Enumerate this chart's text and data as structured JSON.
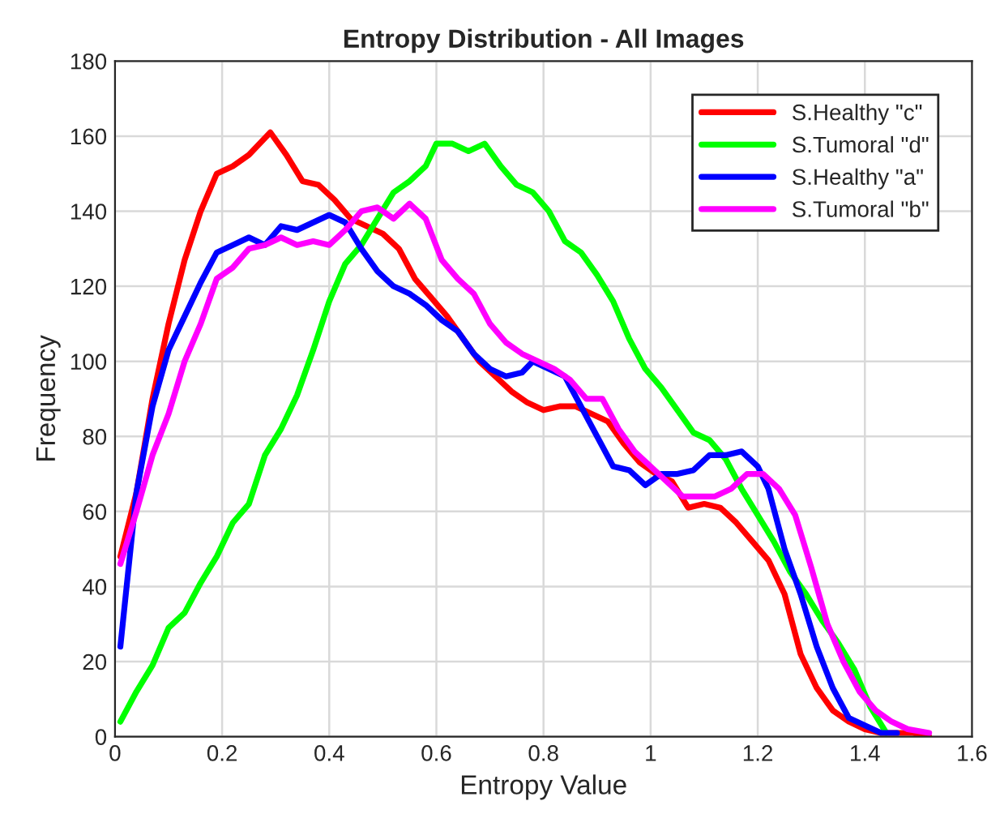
{
  "chart_data": {
    "type": "line",
    "title": "Entropy Distribution - All Images",
    "xlabel": "Entropy Value",
    "ylabel": "Frequency",
    "xlim": [
      0,
      1.6
    ],
    "xticks": [
      0,
      0.2,
      0.4,
      0.6,
      0.8,
      1,
      1.2,
      1.4,
      1.6
    ],
    "ylim": [
      0,
      180
    ],
    "yticks": [
      0,
      20,
      40,
      60,
      80,
      100,
      120,
      140,
      160,
      180
    ],
    "grid": true,
    "legend": "top right",
    "marker": "none",
    "line_style": "solid",
    "series": [
      {
        "name": "S.Healthy \"c\"",
        "color": "#ff0000",
        "x": [
          0.01,
          0.04,
          0.07,
          0.1,
          0.13,
          0.16,
          0.19,
          0.22,
          0.25,
          0.29,
          0.32,
          0.35,
          0.38,
          0.41,
          0.44,
          0.47,
          0.5,
          0.53,
          0.56,
          0.59,
          0.62,
          0.65,
          0.68,
          0.71,
          0.74,
          0.77,
          0.8,
          0.83,
          0.86,
          0.89,
          0.92,
          0.95,
          0.98,
          1.01,
          1.04,
          1.07,
          1.1,
          1.13,
          1.16,
          1.19,
          1.22,
          1.25,
          1.28,
          1.31,
          1.34,
          1.37,
          1.4,
          1.43,
          1.46,
          1.49,
          1.52
        ],
        "values": [
          48,
          65,
          90,
          110,
          127,
          140,
          150,
          152,
          155,
          161,
          155,
          148,
          147,
          143,
          138,
          136,
          134,
          130,
          122,
          117,
          112,
          106,
          100,
          96,
          92,
          89,
          87,
          88,
          88,
          86,
          84,
          78,
          73,
          70,
          68,
          61,
          62,
          61,
          57,
          52,
          47,
          38,
          22,
          13,
          7,
          4,
          2,
          1,
          1,
          1,
          0
        ]
      },
      {
        "name": "S.Tumoral \"d\"",
        "color": "#00ff00",
        "x": [
          0.01,
          0.04,
          0.07,
          0.1,
          0.13,
          0.16,
          0.19,
          0.22,
          0.25,
          0.28,
          0.31,
          0.34,
          0.37,
          0.4,
          0.43,
          0.46,
          0.49,
          0.52,
          0.55,
          0.58,
          0.6,
          0.63,
          0.66,
          0.69,
          0.72,
          0.75,
          0.78,
          0.81,
          0.84,
          0.87,
          0.9,
          0.93,
          0.96,
          0.99,
          1.02,
          1.05,
          1.08,
          1.11,
          1.14,
          1.17,
          1.2,
          1.23,
          1.26,
          1.29,
          1.32,
          1.35,
          1.38,
          1.41,
          1.44
        ],
        "values": [
          4,
          12,
          19,
          29,
          33,
          41,
          48,
          57,
          62,
          75,
          82,
          91,
          103,
          116,
          126,
          131,
          138,
          145,
          148,
          152,
          158,
          158,
          156,
          158,
          152,
          147,
          145,
          140,
          132,
          129,
          123,
          116,
          106,
          98,
          93,
          87,
          81,
          79,
          74,
          66,
          59,
          52,
          44,
          38,
          31,
          25,
          18,
          8,
          1
        ]
      },
      {
        "name": "S.Healthy \"a\"",
        "color": "#0000ff",
        "x": [
          0.01,
          0.04,
          0.07,
          0.1,
          0.13,
          0.16,
          0.19,
          0.22,
          0.25,
          0.28,
          0.31,
          0.34,
          0.37,
          0.4,
          0.43,
          0.46,
          0.49,
          0.52,
          0.55,
          0.58,
          0.61,
          0.64,
          0.67,
          0.7,
          0.73,
          0.76,
          0.78,
          0.81,
          0.84,
          0.87,
          0.9,
          0.93,
          0.96,
          0.99,
          1.02,
          1.05,
          1.08,
          1.11,
          1.14,
          1.17,
          1.2,
          1.22,
          1.25,
          1.28,
          1.31,
          1.34,
          1.37,
          1.4,
          1.43,
          1.46
        ],
        "values": [
          24,
          65,
          88,
          103,
          112,
          121,
          129,
          131,
          133,
          131,
          136,
          135,
          137,
          139,
          137,
          130,
          124,
          120,
          118,
          115,
          111,
          108,
          102,
          98,
          96,
          97,
          100,
          98,
          96,
          88,
          80,
          72,
          71,
          67,
          70,
          70,
          71,
          75,
          75,
          76,
          72,
          66,
          50,
          38,
          24,
          13,
          5,
          3,
          1,
          1
        ]
      },
      {
        "name": "S.Tumoral \"b\"",
        "color": "#ff00ff",
        "x": [
          0.01,
          0.04,
          0.07,
          0.1,
          0.13,
          0.16,
          0.19,
          0.22,
          0.25,
          0.28,
          0.31,
          0.34,
          0.37,
          0.4,
          0.43,
          0.46,
          0.49,
          0.52,
          0.55,
          0.58,
          0.61,
          0.64,
          0.67,
          0.7,
          0.73,
          0.76,
          0.79,
          0.82,
          0.85,
          0.88,
          0.91,
          0.94,
          0.97,
          1.0,
          1.03,
          1.06,
          1.09,
          1.12,
          1.15,
          1.18,
          1.21,
          1.24,
          1.27,
          1.3,
          1.33,
          1.36,
          1.39,
          1.42,
          1.45,
          1.48,
          1.52
        ],
        "values": [
          46,
          60,
          75,
          86,
          100,
          110,
          122,
          125,
          130,
          131,
          133,
          131,
          132,
          131,
          135,
          140,
          141,
          138,
          142,
          138,
          127,
          122,
          118,
          110,
          105,
          102,
          100,
          98,
          95,
          90,
          90,
          82,
          76,
          72,
          68,
          64,
          64,
          64,
          66,
          70,
          70,
          66,
          59,
          45,
          30,
          20,
          12,
          7,
          4,
          2,
          1
        ]
      }
    ]
  }
}
